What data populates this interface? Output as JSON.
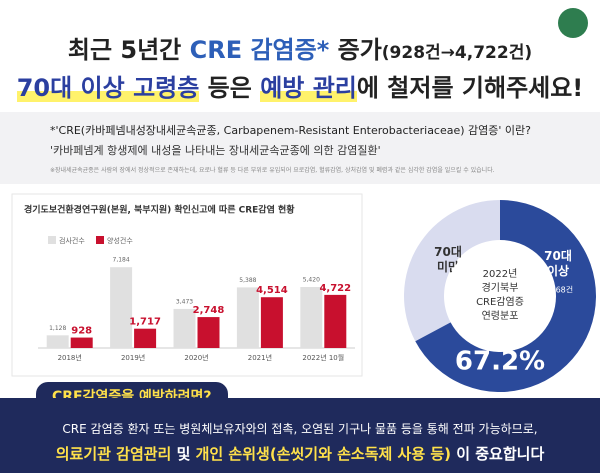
{
  "header": {
    "line1": [
      "최근 5년간 ",
      "CRE 감염증*",
      " 증가",
      "(928건→4,722건)"
    ],
    "line2": [
      "70대 이상 고령층",
      " 등은 ",
      "예방 관리",
      "에 철저를 기해주세요!"
    ]
  },
  "definition": {
    "question": "*'CRE(카바페넴내성장내세균속균종, Carbapenem-Resistant Enterobacteriaceae) 감염증' 이란?",
    "answer": "'카바페넴계 항생제에 내성을 나타내는 장내세균속균종에 의한 감염질환'",
    "note": "※장내세균속균종은 사람의 장에서 정상적으로 존재하는데, 요로나 혈류 등 다른 부위로 유입되어 요로감염, 혈류감염, 상처감염 및 폐렴과 같은 심각한 감염을 일으킬 수 있습니다."
  },
  "chart_data": [
    {
      "type": "bar",
      "title": "경기도보건환경연구원(본원, 북부지원) 확인신고에 따른 CRE감염 현황",
      "categories": [
        "2018년",
        "2019년",
        "2020년",
        "2021년",
        "2022년 10월"
      ],
      "series": [
        {
          "name": "검사건수",
          "color": "#e0e0e0",
          "values": [
            1128,
            7184,
            3473,
            5388,
            5420
          ],
          "value_labels": [
            "1,128",
            "7,184",
            "3,473",
            "5,388",
            "5,420"
          ]
        },
        {
          "name": "양성건수",
          "color": "#c8102e",
          "values": [
            928,
            1717,
            2748,
            4514,
            4722
          ],
          "value_labels": [
            "928",
            "1,717",
            "2,748",
            "4,514",
            "4,722"
          ]
        }
      ],
      "ylim": [
        0,
        8000
      ],
      "legend": "top-left"
    },
    {
      "type": "pie",
      "title_lines": [
        "2022년",
        "경기북부",
        "CRE감염증",
        "연령분포"
      ],
      "categories": [
        "70대 미만",
        "70대 이상"
      ],
      "values": [
        32.8,
        67.2
      ],
      "colors": [
        "#d9dcef",
        "#2b4a9b"
      ],
      "value_labels": [
        null,
        "67.2%"
      ],
      "annotations": [
        "1,268건"
      ]
    }
  ],
  "footer": {
    "tab": "CRE감염증을 예방하려면?",
    "line1": "CRE 감염증 환자 또는 병원체보유자와의 접촉, 오염된 기구나 물품 등을 통해 전파 가능하므로,",
    "line2": [
      "의료기관 감염관리",
      " 및 ",
      "개인 손위생(손씻기와 손소독제 사용 등)",
      " 이 중요합니다"
    ]
  }
}
